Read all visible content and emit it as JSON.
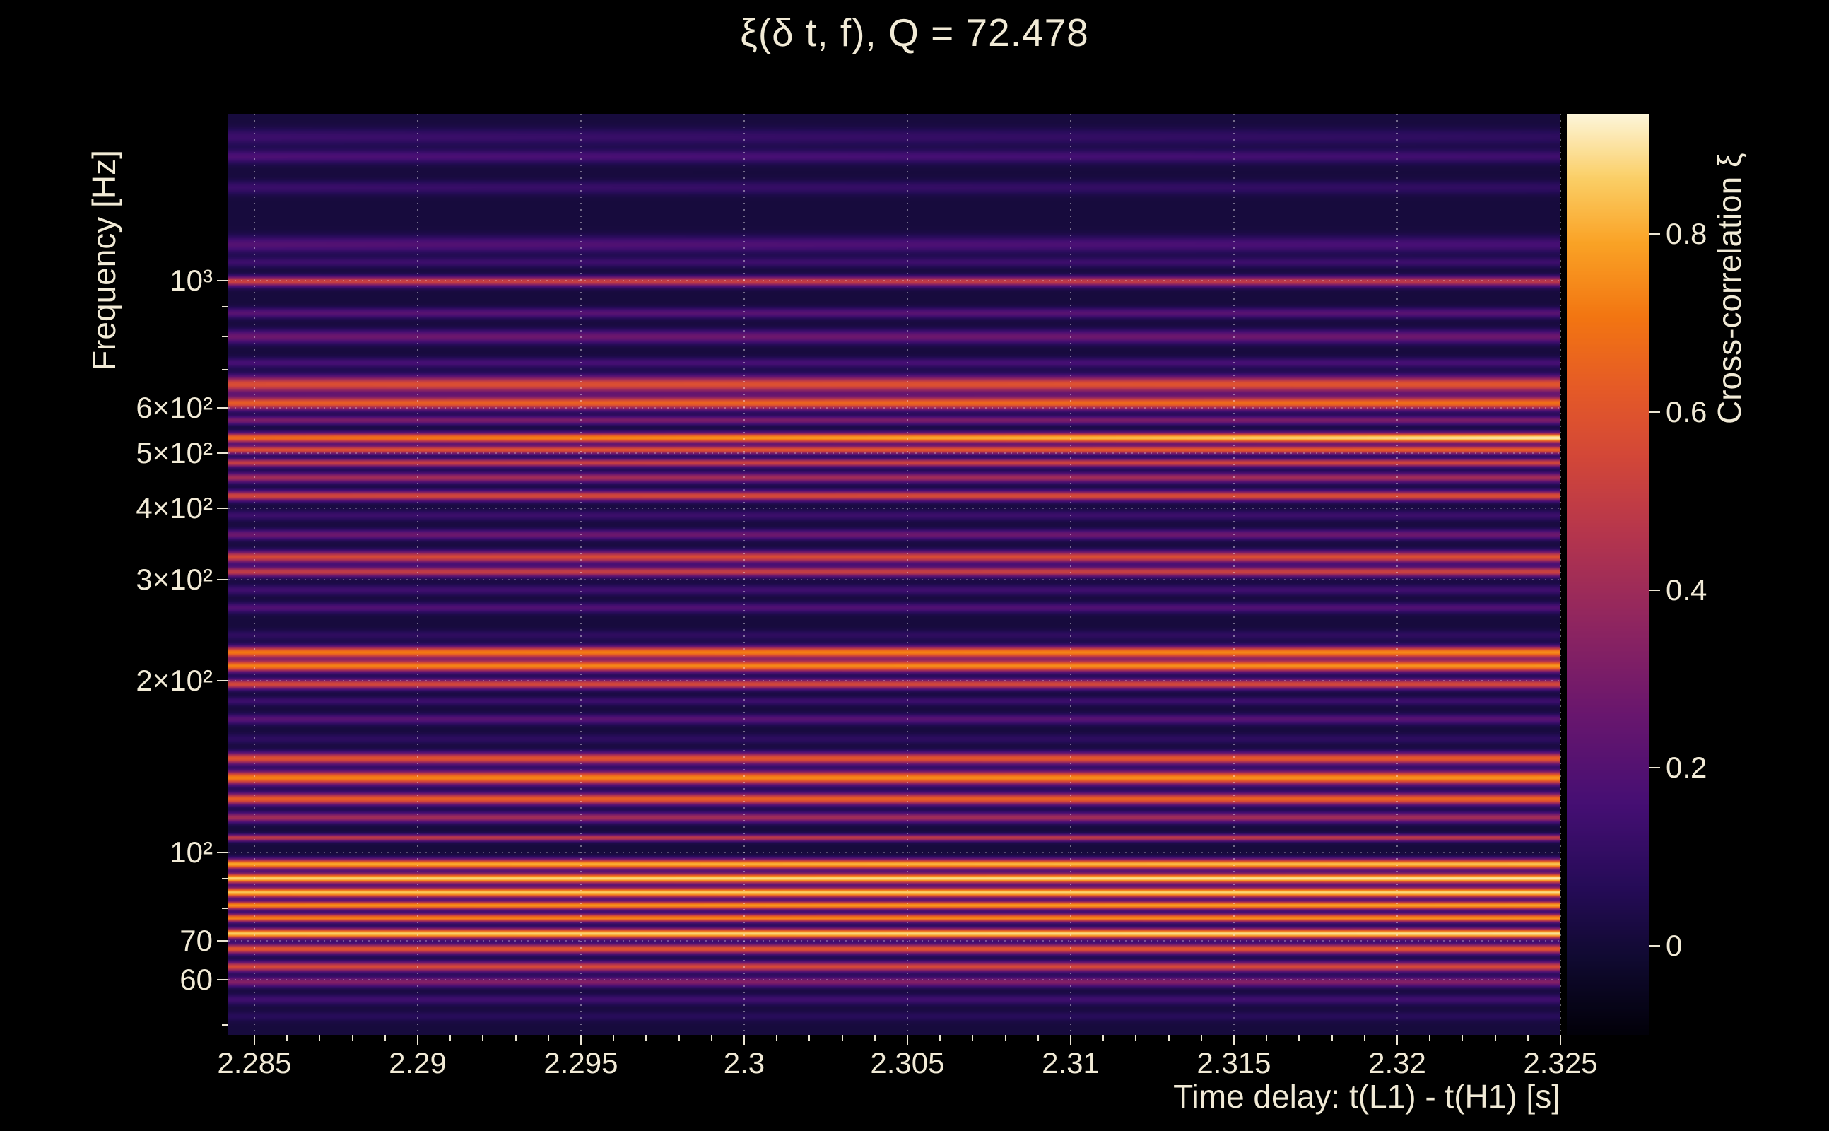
{
  "chart_data": {
    "type": "heatmap",
    "title": "ξ(δ t, f), Q = 72.478",
    "xlabel": "Time delay: t(L1) - t(H1) [s]",
    "ylabel": "Frequency [Hz]",
    "zlabel": "Cross-correlation ξ",
    "x_range": [
      2.2842,
      2.325
    ],
    "x_ticks": [
      {
        "value": 2.285,
        "label": "2.285"
      },
      {
        "value": 2.29,
        "label": "2.29"
      },
      {
        "value": 2.295,
        "label": "2.295"
      },
      {
        "value": 2.3,
        "label": "2.3"
      },
      {
        "value": 2.305,
        "label": "2.305"
      },
      {
        "value": 2.31,
        "label": "2.31"
      },
      {
        "value": 2.315,
        "label": "2.315"
      },
      {
        "value": 2.32,
        "label": "2.32"
      },
      {
        "value": 2.325,
        "label": "2.325"
      }
    ],
    "x_minor_step": 0.001,
    "y_scale": "log",
    "y_range_hz": [
      48,
      1960
    ],
    "y_ticks": [
      {
        "value": 1000,
        "label": "10³"
      },
      {
        "value": 600,
        "label": "6×10²"
      },
      {
        "value": 500,
        "label": "5×10²"
      },
      {
        "value": 400,
        "label": "4×10²"
      },
      {
        "value": 300,
        "label": "3×10²"
      },
      {
        "value": 200,
        "label": "2×10²"
      },
      {
        "value": 100,
        "label": "10²"
      },
      {
        "value": 70,
        "label": "70"
      },
      {
        "value": 60,
        "label": "60"
      }
    ],
    "y_minor_ticks": [
      900,
      800,
      700,
      90,
      80,
      50
    ],
    "colorbar": {
      "range": [
        -0.1,
        0.935
      ],
      "ticks": [
        {
          "value": 0.8,
          "label": "0.8"
        },
        {
          "value": 0.6,
          "label": "0.6"
        },
        {
          "value": 0.4,
          "label": "0.4"
        },
        {
          "value": 0.2,
          "label": "0.2"
        },
        {
          "value": 0,
          "label": "0"
        }
      ]
    },
    "grid": {
      "vertical_dotted_at_major_x": true,
      "horizontal_dotted_at_y_ticks": true
    },
    "background_xi": 0.01,
    "bands": [
      {
        "f": 1790,
        "xi": 0.1,
        "s": 0.01,
        "slope": -0.04
      },
      {
        "f": 1655,
        "xi": 0.15,
        "s": 0.008,
        "slope": -0.04
      },
      {
        "f": 1460,
        "xi": 0.1,
        "s": 0.008,
        "slope": -0.03
      },
      {
        "f": 1160,
        "xi": 0.17,
        "s": 0.01,
        "slope": -0.04
      },
      {
        "f": 1080,
        "xi": 0.12,
        "s": 0.006,
        "slope": 0
      },
      {
        "f": 1000,
        "xi": 0.5,
        "s": 0.006,
        "slope": -0.05
      },
      {
        "f": 880,
        "xi": 0.2,
        "s": 0.006,
        "slope": 0
      },
      {
        "f": 800,
        "xi": 0.26,
        "s": 0.008,
        "slope": 0
      },
      {
        "f": 720,
        "xi": 0.15,
        "s": 0.006,
        "slope": 0
      },
      {
        "f": 660,
        "xi": 0.58,
        "s": 0.01,
        "slope": 0.03
      },
      {
        "f": 612,
        "xi": 0.65,
        "s": 0.008,
        "slope": 0.06
      },
      {
        "f": 571,
        "xi": 0.3,
        "s": 0.005,
        "slope": 0
      },
      {
        "f": 532,
        "xi": 0.8,
        "s": 0.006,
        "slope": 0.26
      },
      {
        "f": 507,
        "xi": 0.6,
        "s": 0.005,
        "slope": 0.06
      },
      {
        "f": 481,
        "xi": 0.52,
        "s": 0.005,
        "slope": 0.04
      },
      {
        "f": 453,
        "xi": 0.4,
        "s": 0.006,
        "slope": 0
      },
      {
        "f": 421,
        "xi": 0.56,
        "s": 0.006,
        "slope": 0.04
      },
      {
        "f": 389,
        "xi": 0.12,
        "s": 0.006,
        "slope": 0
      },
      {
        "f": 360,
        "xi": 0.26,
        "s": 0.006,
        "slope": 0
      },
      {
        "f": 329,
        "xi": 0.56,
        "s": 0.007,
        "slope": 0.03
      },
      {
        "f": 310,
        "xi": 0.5,
        "s": 0.006,
        "slope": 0.03
      },
      {
        "f": 288,
        "xi": 0.13,
        "s": 0.006,
        "slope": 0
      },
      {
        "f": 268,
        "xi": 0.18,
        "s": 0.006,
        "slope": 0
      },
      {
        "f": 240,
        "xi": 0.08,
        "s": 0.006,
        "slope": 0
      },
      {
        "f": 224,
        "xi": 0.72,
        "s": 0.007,
        "slope": 0.04
      },
      {
        "f": 212,
        "xi": 0.74,
        "s": 0.007,
        "slope": 0.04
      },
      {
        "f": 197,
        "xi": 0.55,
        "s": 0.006,
        "slope": 0
      },
      {
        "f": 184,
        "xi": 0.12,
        "s": 0.005,
        "slope": 0
      },
      {
        "f": 171,
        "xi": 0.2,
        "s": 0.006,
        "slope": 0
      },
      {
        "f": 158,
        "xi": 0.08,
        "s": 0.006,
        "slope": 0
      },
      {
        "f": 146,
        "xi": 0.6,
        "s": 0.007,
        "slope": 0.04
      },
      {
        "f": 135,
        "xi": 0.74,
        "s": 0.008,
        "slope": 0.04
      },
      {
        "f": 124,
        "xi": 0.64,
        "s": 0.007,
        "slope": 0.03
      },
      {
        "f": 115,
        "xi": 0.4,
        "s": 0.006,
        "slope": 0
      },
      {
        "f": 106,
        "xi": 0.5,
        "s": 0.004,
        "slope": 0
      },
      {
        "f": 95.3,
        "xi": 0.82,
        "s": 0.006,
        "slope": 0.05
      },
      {
        "f": 90,
        "xi": 0.89,
        "s": 0.006,
        "slope": 0.04
      },
      {
        "f": 85,
        "xi": 0.87,
        "s": 0.006,
        "slope": 0.04
      },
      {
        "f": 80.7,
        "xi": 0.78,
        "s": 0.005,
        "slope": 0.04
      },
      {
        "f": 76.7,
        "xi": 0.75,
        "s": 0.005,
        "slope": 0.04
      },
      {
        "f": 72,
        "xi": 0.88,
        "s": 0.006,
        "slope": 0.04
      },
      {
        "f": 67.7,
        "xi": 0.6,
        "s": 0.006,
        "slope": 0
      },
      {
        "f": 63,
        "xi": 0.55,
        "s": 0.006,
        "slope": 0
      },
      {
        "f": 59.3,
        "xi": 0.32,
        "s": 0.006,
        "slope": 0
      },
      {
        "f": 55.2,
        "xi": 0.13,
        "s": 0.006,
        "slope": 0
      },
      {
        "f": 51.6,
        "xi": 0.06,
        "s": 0.006,
        "slope": 0
      }
    ],
    "colormap_stops": [
      [
        0.0,
        2,
        1,
        10
      ],
      [
        0.08,
        16,
        10,
        48
      ],
      [
        0.16,
        38,
        12,
        88
      ],
      [
        0.25,
        70,
        15,
        116
      ],
      [
        0.35,
        106,
        23,
        110
      ],
      [
        0.45,
        145,
        38,
        96
      ],
      [
        0.55,
        184,
        55,
        76
      ],
      [
        0.63,
        212,
        72,
        56
      ],
      [
        0.7,
        229,
        90,
        40
      ],
      [
        0.78,
        243,
        118,
        18
      ],
      [
        0.86,
        250,
        163,
        38
      ],
      [
        0.93,
        251,
        207,
        102
      ],
      [
        1.0,
        253,
        246,
        217
      ]
    ],
    "colors": {
      "background": "#000000",
      "text": "#f1ead6",
      "grid": "#ffffff"
    }
  }
}
